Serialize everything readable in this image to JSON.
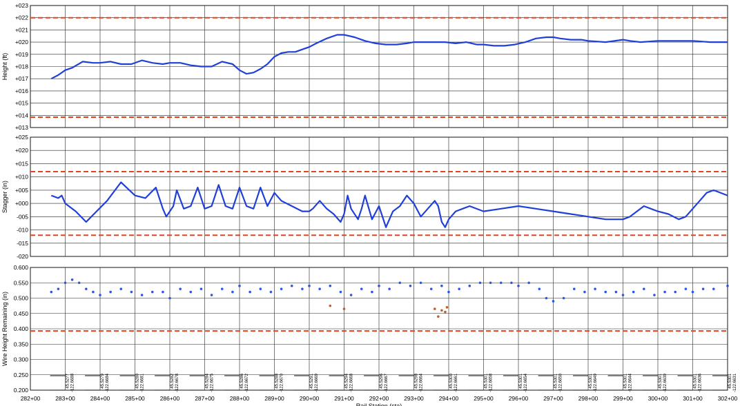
{
  "chart_data": [
    {
      "type": "line",
      "ylabel": "Height (ft)",
      "ylim": [
        13,
        23
      ],
      "ytick_labels": [
        "+013",
        "+014",
        "+015",
        "+016",
        "+017",
        "+018",
        "+019",
        "+020",
        "+021",
        "+022",
        "+023"
      ],
      "xlim": [
        282,
        302
      ],
      "grid": true,
      "limits": [
        22,
        13.85
      ],
      "series": [
        {
          "color": "#1f3fd8",
          "x": [
            282.6,
            282.8,
            283.0,
            283.2,
            283.5,
            283.8,
            284.0,
            284.3,
            284.6,
            284.9,
            285.2,
            285.5,
            285.8,
            286.0,
            286.3,
            286.6,
            286.9,
            287.2,
            287.5,
            287.8,
            288.0,
            288.2,
            288.4,
            288.6,
            288.8,
            289.0,
            289.2,
            289.4,
            289.6,
            289.8,
            290.0,
            290.2,
            290.5,
            290.8,
            291.0,
            291.3,
            291.6,
            291.9,
            292.2,
            292.5,
            292.8,
            293.0,
            293.3,
            293.6,
            293.9,
            294.2,
            294.5,
            294.8,
            295.0,
            295.3,
            295.6,
            295.9,
            296.2,
            296.5,
            296.8,
            297.0,
            297.2,
            297.5,
            297.8,
            298.0,
            298.5,
            299.0,
            299.2,
            299.5,
            300.0,
            300.5,
            301.0,
            301.5,
            302.0
          ],
          "y": [
            17.0,
            17.3,
            17.7,
            17.9,
            18.4,
            18.3,
            18.3,
            18.4,
            18.2,
            18.2,
            18.5,
            18.3,
            18.2,
            18.3,
            18.3,
            18.1,
            18.0,
            18.0,
            18.4,
            18.2,
            17.7,
            17.4,
            17.5,
            17.8,
            18.2,
            18.8,
            19.1,
            19.2,
            19.2,
            19.4,
            19.6,
            19.9,
            20.3,
            20.6,
            20.6,
            20.4,
            20.1,
            19.9,
            19.8,
            19.8,
            19.9,
            20.0,
            20.0,
            20.0,
            20.0,
            19.9,
            20.0,
            19.8,
            19.8,
            19.7,
            19.7,
            19.8,
            20.0,
            20.3,
            20.4,
            20.4,
            20.3,
            20.2,
            20.2,
            20.1,
            20.0,
            20.2,
            20.1,
            20.0,
            20.1,
            20.1,
            20.1,
            20.0,
            20.0
          ]
        }
      ]
    },
    {
      "type": "line",
      "ylabel": "Stagger (in)",
      "ylim": [
        -20,
        25
      ],
      "ytick_labels": [
        "-020",
        "-015",
        "-010",
        "-005",
        "+000",
        "+005",
        "+010",
        "+015",
        "+020",
        "+025"
      ],
      "xlim": [
        282,
        302
      ],
      "grid": true,
      "limits": [
        12,
        -12
      ],
      "series": [
        {
          "color": "#1f3fd8",
          "x": [
            282.6,
            282.8,
            282.9,
            283.0,
            283.3,
            283.6,
            283.9,
            284.2,
            284.6,
            285.0,
            285.3,
            285.6,
            285.8,
            285.9,
            286.1,
            286.2,
            286.4,
            286.6,
            286.8,
            287.0,
            287.2,
            287.4,
            287.6,
            287.8,
            288.0,
            288.2,
            288.4,
            288.6,
            288.8,
            289.0,
            289.2,
            289.5,
            289.8,
            290.0,
            290.1,
            290.3,
            290.5,
            290.7,
            290.9,
            291.0,
            291.1,
            291.2,
            291.4,
            291.5,
            291.6,
            291.8,
            292.0,
            292.2,
            292.4,
            292.6,
            292.8,
            293.0,
            293.2,
            293.4,
            293.6,
            293.7,
            293.8,
            293.9,
            294.0,
            294.2,
            294.4,
            294.6,
            295.0,
            295.5,
            296.0,
            296.5,
            297.0,
            297.5,
            298.0,
            298.5,
            299.0,
            299.2,
            299.4,
            299.6,
            299.8,
            300.0,
            300.3,
            300.6,
            300.8,
            301.0,
            301.2,
            301.4,
            301.6,
            302.0
          ],
          "y": [
            3,
            2,
            3,
            0,
            -3,
            -7,
            -3,
            1,
            8,
            3,
            2,
            6,
            -2,
            -5,
            -1,
            5,
            -2,
            -1,
            6,
            -2,
            -1,
            7,
            -1,
            -2,
            6,
            -1,
            -2,
            6,
            -1,
            4,
            1,
            -1,
            -3,
            -3,
            -2,
            1,
            -2,
            -4,
            -7,
            -4,
            3,
            -2,
            -6,
            -2,
            3,
            -6,
            -1,
            -9,
            -3,
            -1,
            3,
            0,
            -5,
            -2,
            1,
            -1,
            -7,
            -9,
            -6,
            -3,
            -2,
            -1,
            -3,
            -2,
            -1,
            -2,
            -3,
            -4,
            -5,
            -6,
            -6,
            -5,
            -3,
            -1,
            -2,
            -3,
            -4,
            -6,
            -5,
            -2,
            1,
            4,
            5,
            3
          ]
        }
      ]
    },
    {
      "type": "scatter",
      "ylabel": "Wire Height Remaining (in)",
      "ylim": [
        0.2,
        0.6
      ],
      "ytick_labels": [
        "0.200",
        "0.250",
        "0.300",
        "0.350",
        "0.400",
        "0.450",
        "0.500",
        "0.550",
        "0.600"
      ],
      "xlim": [
        282,
        302
      ],
      "grid": true,
      "limits": [
        0.393
      ],
      "x_tick_labels": [
        "282+00",
        "283+00",
        "284+00",
        "285+00",
        "286+00",
        "287+00",
        "288+00",
        "289+00",
        "290+00",
        "291+00",
        "292+00",
        "293+00",
        "294+00",
        "295+00",
        "296+00",
        "297+00",
        "298+00",
        "299+00",
        "300+00",
        "301+00",
        "302+00"
      ],
      "xlabel": "Rail Station (sta)",
      "gps_labels": [
        {
          "x": 283.2,
          "lat": "45.5277",
          "lon": "-122.6688"
        },
        {
          "x": 284.2,
          "lat": "45.5279",
          "lon": "-122.6684"
        },
        {
          "x": 285.2,
          "lat": "45.5280",
          "lon": "-122.6681"
        },
        {
          "x": 286.2,
          "lat": "45.5282",
          "lon": "-122.6678"
        },
        {
          "x": 287.2,
          "lat": "45.5284",
          "lon": "-122.6675"
        },
        {
          "x": 288.2,
          "lat": "45.5286",
          "lon": "-122.6672"
        },
        {
          "x": 289.2,
          "lat": "45.5288",
          "lon": "-122.6670"
        },
        {
          "x": 290.2,
          "lat": "45.5291",
          "lon": "-122.6669"
        },
        {
          "x": 291.2,
          "lat": "45.5294",
          "lon": "-122.6668"
        },
        {
          "x": 292.2,
          "lat": "45.5296",
          "lon": "-122.6667"
        },
        {
          "x": 293.2,
          "lat": "45.5298",
          "lon": "-122.6664"
        },
        {
          "x": 294.2,
          "lat": "45.5300",
          "lon": "-122.6661"
        },
        {
          "x": 295.2,
          "lat": "45.5301",
          "lon": "-122.6658"
        },
        {
          "x": 296.2,
          "lat": "45.5301",
          "lon": "-122.6654"
        },
        {
          "x": 297.2,
          "lat": "45.5301",
          "lon": "-122.6650"
        },
        {
          "x": 298.2,
          "lat": "45.5301",
          "lon": "-122.6649"
        },
        {
          "x": 299.2,
          "lat": "45.5301",
          "lon": "-122.6644"
        },
        {
          "x": 300.2,
          "lat": "45.5301",
          "lon": "-122.6639"
        },
        {
          "x": 301.2,
          "lat": "45.5301",
          "lon": "-122.6636"
        },
        {
          "x": 302.2,
          "lat": "45.5301",
          "lon": "-122.6631"
        }
      ],
      "series": [
        {
          "color": "#2c56e8",
          "x": [
            282.6,
            282.8,
            283.0,
            283.2,
            283.4,
            283.6,
            283.8,
            284.0,
            284.3,
            284.6,
            284.9,
            285.2,
            285.5,
            285.8,
            286.0,
            286.3,
            286.6,
            286.9,
            287.2,
            287.5,
            287.8,
            288.0,
            288.3,
            288.6,
            288.9,
            289.2,
            289.5,
            289.8,
            290.0,
            290.3,
            290.6,
            290.9,
            291.2,
            291.5,
            291.8,
            292.0,
            292.3,
            292.6,
            292.9,
            293.2,
            293.5,
            293.8,
            294.0,
            294.3,
            294.6,
            294.9,
            295.2,
            295.5,
            295.8,
            296.0,
            296.3,
            296.6,
            296.8,
            297.0,
            297.3,
            297.6,
            297.9,
            298.2,
            298.5,
            298.8,
            299.0,
            299.3,
            299.6,
            299.9,
            300.2,
            300.5,
            300.8,
            301.0,
            301.3,
            301.6,
            302.0
          ],
          "y": [
            0.52,
            0.53,
            0.55,
            0.56,
            0.55,
            0.53,
            0.52,
            0.51,
            0.52,
            0.53,
            0.52,
            0.51,
            0.52,
            0.52,
            0.5,
            0.53,
            0.52,
            0.53,
            0.51,
            0.53,
            0.52,
            0.54,
            0.52,
            0.53,
            0.52,
            0.53,
            0.54,
            0.53,
            0.54,
            0.53,
            0.54,
            0.52,
            0.51,
            0.53,
            0.52,
            0.54,
            0.53,
            0.55,
            0.54,
            0.55,
            0.53,
            0.54,
            0.52,
            0.53,
            0.54,
            0.55,
            0.55,
            0.55,
            0.55,
            0.54,
            0.55,
            0.53,
            0.5,
            0.49,
            0.5,
            0.53,
            0.52,
            0.53,
            0.52,
            0.52,
            0.51,
            0.52,
            0.53,
            0.51,
            0.52,
            0.52,
            0.53,
            0.52,
            0.53,
            0.53,
            0.54
          ]
        },
        {
          "color": "#c0612b",
          "x": [
            290.6,
            291.0,
            293.6,
            293.7,
            293.8,
            293.9,
            293.95
          ],
          "y": [
            0.475,
            0.465,
            0.465,
            0.44,
            0.46,
            0.455,
            0.47
          ]
        }
      ]
    }
  ]
}
